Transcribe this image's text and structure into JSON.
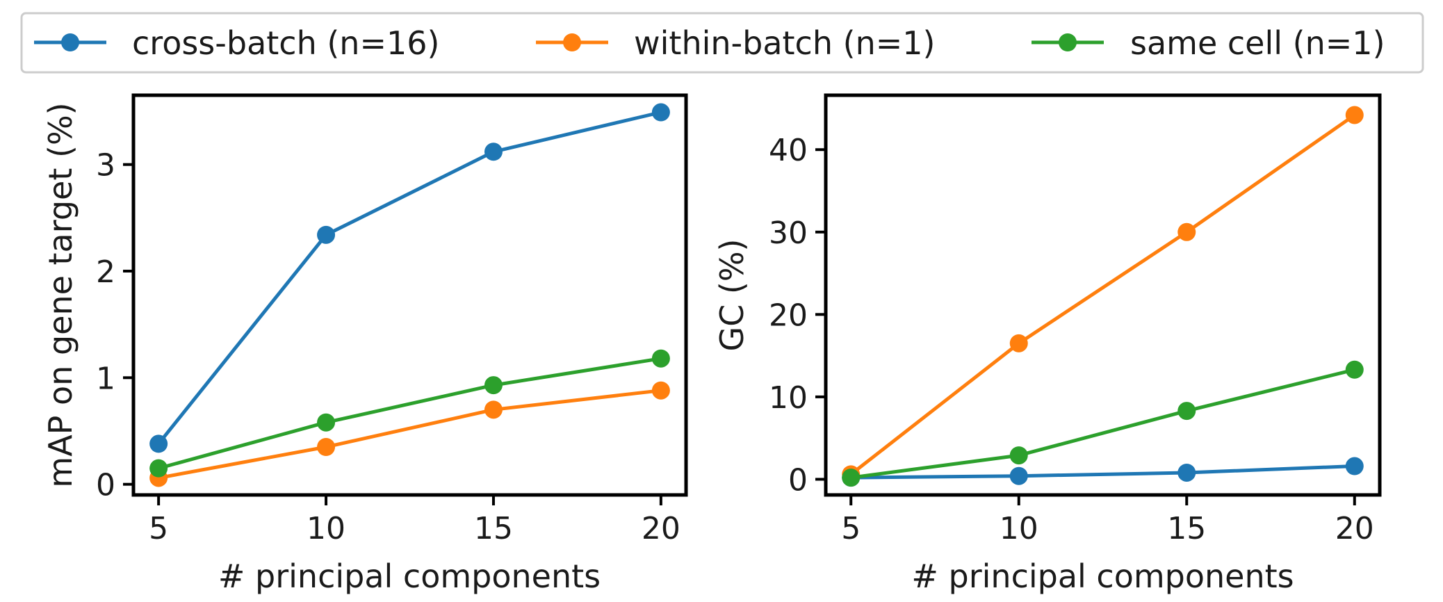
{
  "chart_data": [
    {
      "type": "line",
      "xlabel": "# principal components",
      "ylabel": "mAP on gene target (%)",
      "x": [
        5,
        10,
        15,
        20
      ],
      "xticks": [
        5,
        10,
        15,
        20
      ],
      "yticks": [
        0,
        1,
        2,
        3
      ],
      "xlim": [
        4.25,
        20.75
      ],
      "ylim": [
        -0.1,
        3.65
      ],
      "series": [
        {
          "name": "cross-batch (n=16)",
          "color": "#1f77b4",
          "values": [
            0.38,
            2.34,
            3.12,
            3.49
          ]
        },
        {
          "name": "within-batch (n=1)",
          "color": "#ff7f0e",
          "values": [
            0.06,
            0.35,
            0.7,
            0.88
          ]
        },
        {
          "name": "same cell (n=1)",
          "color": "#2ca02c",
          "values": [
            0.15,
            0.58,
            0.93,
            1.18
          ]
        }
      ]
    },
    {
      "type": "line",
      "xlabel": "# principal components",
      "ylabel": "GC (%)",
      "x": [
        5,
        10,
        15,
        20
      ],
      "xticks": [
        5,
        10,
        15,
        20
      ],
      "yticks": [
        0,
        10,
        20,
        30,
        40
      ],
      "xlim": [
        4.25,
        20.75
      ],
      "ylim": [
        -1.9,
        46.6
      ],
      "series": [
        {
          "name": "cross-batch (n=16)",
          "color": "#1f77b4",
          "values": [
            0.2,
            0.4,
            0.8,
            1.6
          ]
        },
        {
          "name": "within-batch (n=1)",
          "color": "#ff7f0e",
          "values": [
            0.6,
            16.5,
            30.0,
            44.2
          ]
        },
        {
          "name": "same cell (n=1)",
          "color": "#2ca02c",
          "values": [
            0.2,
            2.9,
            8.3,
            13.3
          ]
        }
      ]
    }
  ],
  "legend": {
    "placement": "top",
    "entries": [
      {
        "label": "cross-batch (n=16)",
        "color": "#1f77b4"
      },
      {
        "label": "within-batch (n=1)",
        "color": "#ff7f0e"
      },
      {
        "label": "same cell (n=1)",
        "color": "#2ca02c"
      }
    ]
  }
}
